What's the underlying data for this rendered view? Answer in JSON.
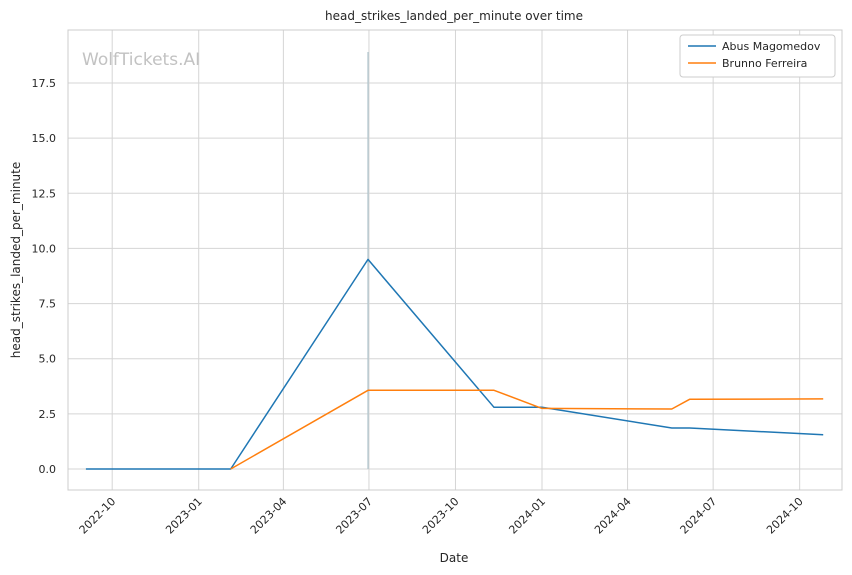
{
  "chart_data": {
    "type": "line",
    "title": "head_strikes_landed_per_minute over time",
    "xlabel": "Date",
    "ylabel": "head_strikes_landed_per_minute",
    "watermark": "WolfTickets.AI",
    "x_range": [
      "2022-08-15",
      "2024-11-15"
    ],
    "ylim": [
      -0.95,
      19.9
    ],
    "x_ticks": [
      "2022-10-01",
      "2023-01-01",
      "2023-04-01",
      "2023-07-01",
      "2023-10-01",
      "2024-01-01",
      "2024-04-01",
      "2024-07-01",
      "2024-10-01"
    ],
    "x_tick_labels": [
      "2022-10",
      "2023-01",
      "2023-04",
      "2023-07",
      "2023-10",
      "2024-01",
      "2024-04",
      "2024-07",
      "2024-10"
    ],
    "y_ticks": [
      0.0,
      2.5,
      5.0,
      7.5,
      10.0,
      12.5,
      15.0,
      17.5
    ],
    "y_tick_labels": [
      "0.0",
      "2.5",
      "5.0",
      "7.5",
      "10.0",
      "12.5",
      "15.0",
      "17.5"
    ],
    "grid": true,
    "legend_position": "top-right",
    "vertical_marker": {
      "x": "2023-06-30",
      "y_top": 18.9,
      "color": "#b0c4cc"
    },
    "series": [
      {
        "name": "Abus Magomedov",
        "color": "#1f77b4",
        "points": [
          {
            "x": "2022-09-03",
            "y": 0.0
          },
          {
            "x": "2023-02-04",
            "y": 0.0
          },
          {
            "x": "2023-06-30",
            "y": 9.5
          },
          {
            "x": "2023-11-11",
            "y": 2.8
          },
          {
            "x": "2024-01-01",
            "y": 2.8
          },
          {
            "x": "2024-05-18",
            "y": 1.86
          },
          {
            "x": "2024-06-06",
            "y": 1.86
          },
          {
            "x": "2024-10-26",
            "y": 1.55
          }
        ]
      },
      {
        "name": "Brunno Ferreira",
        "color": "#ff7f0e",
        "points": [
          {
            "x": "2023-02-04",
            "y": 0.0
          },
          {
            "x": "2023-06-30",
            "y": 3.57
          },
          {
            "x": "2023-11-11",
            "y": 3.57
          },
          {
            "x": "2024-01-01",
            "y": 2.75
          },
          {
            "x": "2024-05-18",
            "y": 2.72
          },
          {
            "x": "2024-06-06",
            "y": 3.16
          },
          {
            "x": "2024-10-26",
            "y": 3.18
          }
        ]
      }
    ]
  }
}
